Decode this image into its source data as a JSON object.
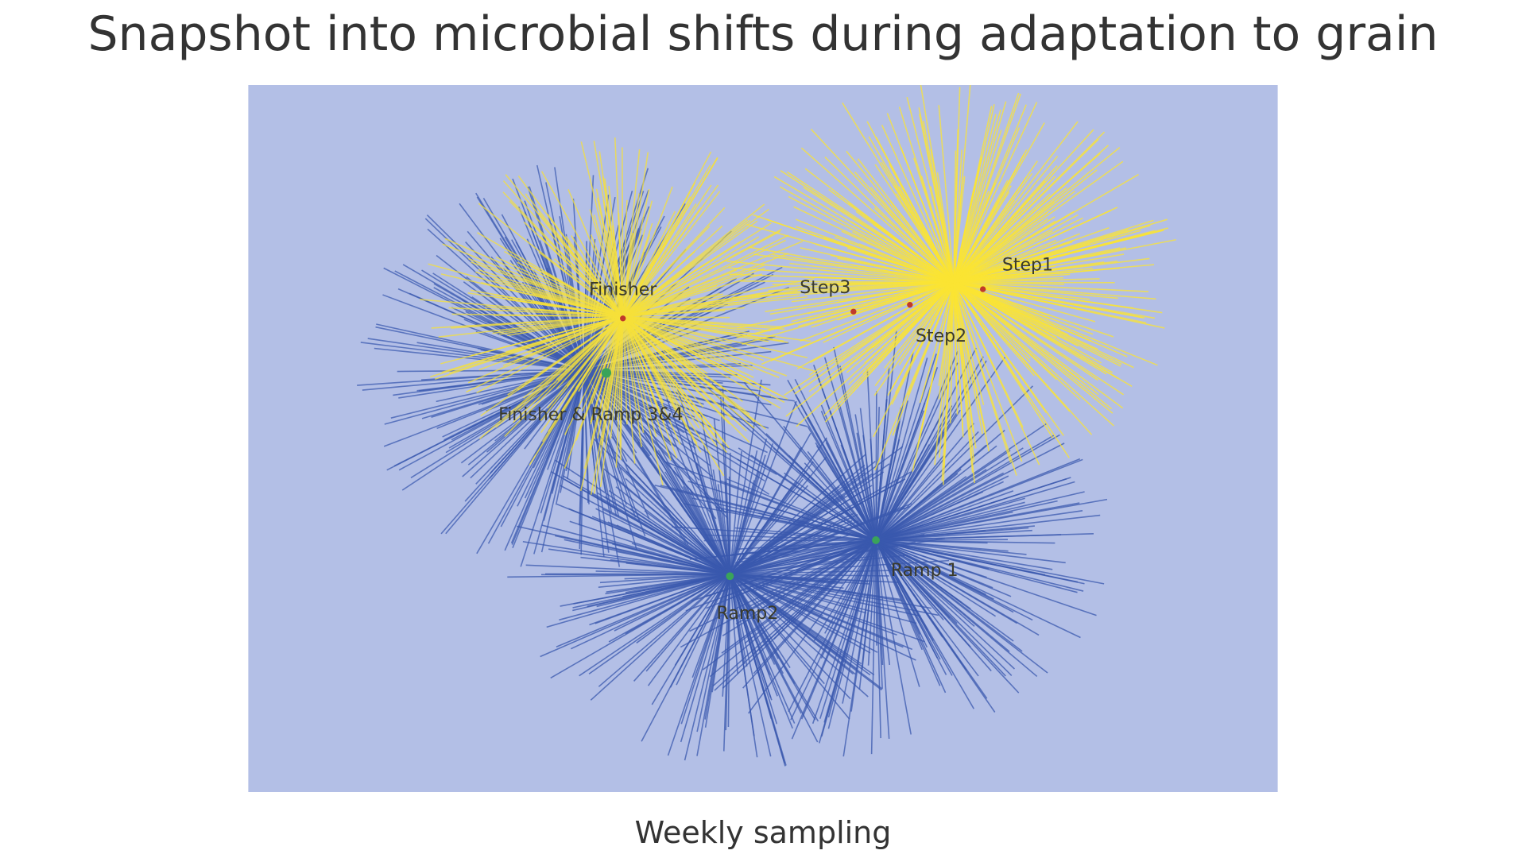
{
  "header": {
    "title": "Snapshot into microbial shifts during adaptation to grain"
  },
  "figure": {
    "labels": [
      "Finisher",
      "Step3",
      "Step1",
      "Step2",
      "Finisher & Ramp 3&4",
      "Ramp 1",
      "Ramp2"
    ],
    "caption": "Weekly sampling"
  }
}
